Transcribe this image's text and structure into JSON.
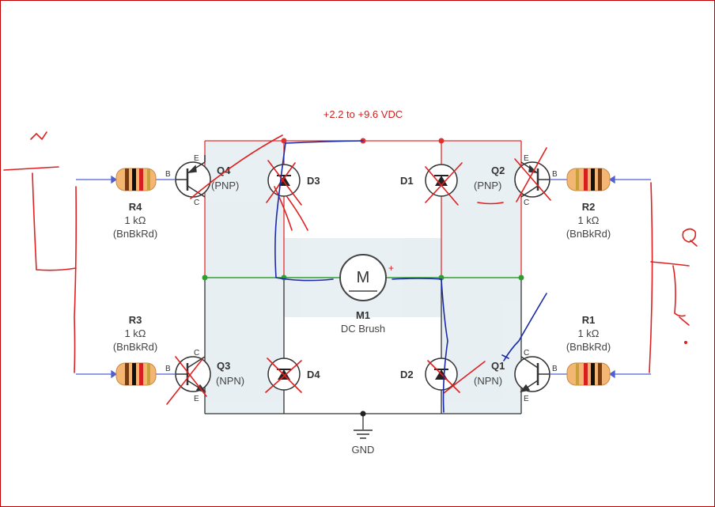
{
  "supply_label": "+2.2 to +9.6 VDC",
  "ground_label": "GND",
  "motor": {
    "symbol": "M",
    "name": "M1",
    "type": "DC Brush",
    "polarity": "+"
  },
  "resistors": [
    {
      "id": "R4",
      "value": "1 kΩ",
      "code": "(BnBkRd)"
    },
    {
      "id": "R3",
      "value": "1 kΩ",
      "code": "(BnBkRd)"
    },
    {
      "id": "R2",
      "value": "1 kΩ",
      "code": "(BnBkRd)"
    },
    {
      "id": "R1",
      "value": "1 kΩ",
      "code": "(BnBkRd)"
    }
  ],
  "transistors": [
    {
      "id": "Q4",
      "type": "(PNP)"
    },
    {
      "id": "Q3",
      "type": "(NPN)"
    },
    {
      "id": "Q2",
      "type": "(PNP)"
    },
    {
      "id": "Q1",
      "type": "(NPN)"
    }
  ],
  "diodes": [
    "D3",
    "D4",
    "D1",
    "D2"
  ],
  "pins": {
    "base": "B",
    "collector": "C",
    "emitter": "E"
  },
  "handwriting": {
    "left_mark": "v",
    "right_mark": "Q"
  },
  "colors": {
    "supply": "#e03030",
    "ground": "#333333",
    "motor_net": "#2e9e2e",
    "input": "#5060d0",
    "annotation_red": "#e02020",
    "annotation_blue": "#1a2aa8"
  }
}
